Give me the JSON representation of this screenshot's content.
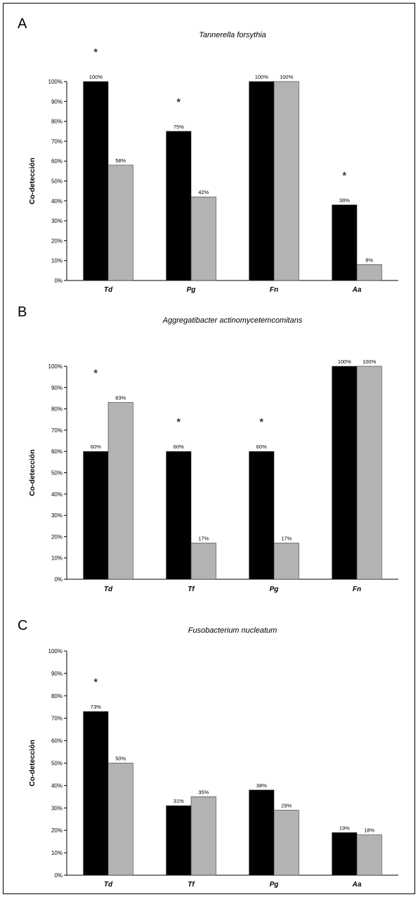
{
  "figure": {
    "panels": [
      {
        "letter": "A"
      },
      {
        "letter": "B"
      },
      {
        "letter": "C"
      }
    ]
  },
  "chart_data": [
    {
      "type": "bar",
      "title": "Tannerella forsythia",
      "ylabel": "Co-detección",
      "xlabel": "",
      "ylim": [
        0,
        100
      ],
      "yticks": [
        "0%",
        "10%",
        "20%",
        "30%",
        "40%",
        "50%",
        "60%",
        "70%",
        "80%",
        "90%",
        "100%"
      ],
      "categories": [
        "Td",
        "Pg",
        "Fn",
        "Aa"
      ],
      "series": [
        {
          "values": [
            100,
            75,
            100,
            38
          ],
          "labels": [
            "100%",
            "75%",
            "100%",
            "38%"
          ],
          "color": "#000000"
        },
        {
          "values": [
            58,
            42,
            100,
            8
          ],
          "labels": [
            "58%",
            "42%",
            "100%",
            "8%"
          ],
          "color": "#b3b3b3"
        }
      ],
      "significance": [
        true,
        true,
        false,
        true
      ],
      "significance_marker": "*",
      "grid": false
    },
    {
      "type": "bar",
      "title": "Aggregatibacter actinomycetemcomitans",
      "ylabel": "Co-detección",
      "xlabel": "",
      "ylim": [
        0,
        100
      ],
      "yticks": [
        "0%",
        "10%",
        "20%",
        "30%",
        "40%",
        "50%",
        "60%",
        "70%",
        "80%",
        "90%",
        "100%"
      ],
      "categories": [
        "Td",
        "Tf",
        "Pg",
        "Fn"
      ],
      "series": [
        {
          "values": [
            60,
            60,
            60,
            100
          ],
          "labels": [
            "60%",
            "60%",
            "60%",
            "100%"
          ],
          "color": "#000000"
        },
        {
          "values": [
            83,
            17,
            17,
            100
          ],
          "labels": [
            "83%",
            "17%",
            "17%",
            "100%"
          ],
          "color": "#b3b3b3"
        }
      ],
      "significance": [
        true,
        true,
        true,
        false
      ],
      "significance_marker": "*",
      "grid": false
    },
    {
      "type": "bar",
      "title": "Fusobacterium nucleatum",
      "ylabel": "Co-detección",
      "xlabel": "",
      "ylim": [
        0,
        100
      ],
      "yticks": [
        "0%",
        "10%",
        "20%",
        "30%",
        "40%",
        "50%",
        "60%",
        "70%",
        "80%",
        "90%",
        "100%"
      ],
      "categories": [
        "Td",
        "Tf",
        "Pg",
        "Aa"
      ],
      "series": [
        {
          "values": [
            73,
            31,
            38,
            19
          ],
          "labels": [
            "73%",
            "31%",
            "38%",
            "19%"
          ],
          "color": "#000000"
        },
        {
          "values": [
            50,
            35,
            29,
            18
          ],
          "labels": [
            "50%",
            "35%",
            "29%",
            "18%"
          ],
          "color": "#b3b3b3"
        }
      ],
      "significance": [
        true,
        false,
        false,
        false
      ],
      "significance_marker": "*",
      "grid": false
    }
  ]
}
